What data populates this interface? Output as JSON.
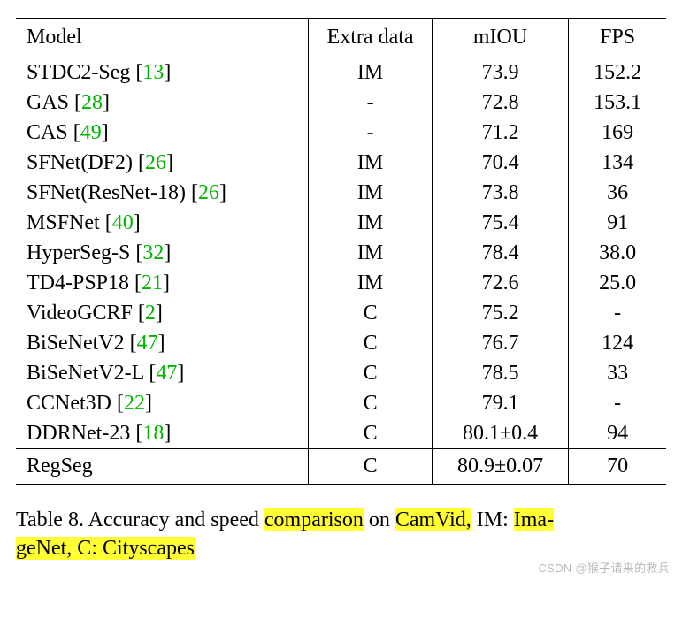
{
  "table": {
    "columns": [
      "Model",
      "Extra data",
      "mIOU",
      "FPS"
    ],
    "column_widths": [
      "45%",
      "19%",
      "21%",
      "15%"
    ],
    "rows": [
      {
        "model": "STDC2-Seg",
        "cite": "13",
        "extra": "IM",
        "miou": "73.9",
        "fps": "152.2"
      },
      {
        "model": "GAS",
        "cite": "28",
        "extra": "-",
        "miou": "72.8",
        "fps": "153.1"
      },
      {
        "model": "CAS",
        "cite": "49",
        "extra": "-",
        "miou": "71.2",
        "fps": "169"
      },
      {
        "model": "SFNet(DF2)",
        "cite": "26",
        "extra": "IM",
        "miou": "70.4",
        "fps": "134"
      },
      {
        "model": "SFNet(ResNet-18)",
        "cite": "26",
        "extra": "IM",
        "miou": "73.8",
        "fps": "36"
      },
      {
        "model": "MSFNet",
        "cite": "40",
        "extra": "IM",
        "miou": "75.4",
        "fps": "91"
      },
      {
        "model": "HyperSeg-S",
        "cite": "32",
        "extra": "IM",
        "miou": "78.4",
        "fps": "38.0"
      },
      {
        "model": "TD4-PSP18",
        "cite": "21",
        "extra": "IM",
        "miou": "72.6",
        "fps": "25.0"
      },
      {
        "model": "VideoGCRF",
        "cite": "2",
        "extra": "C",
        "miou": "75.2",
        "fps": "-"
      },
      {
        "model": "BiSeNetV2",
        "cite": "47",
        "extra": "C",
        "miou": "76.7",
        "fps": "124"
      },
      {
        "model": "BiSeNetV2-L",
        "cite": "47",
        "extra": "C",
        "miou": "78.5",
        "fps": "33"
      },
      {
        "model": "CCNet3D",
        "cite": "22",
        "extra": "C",
        "miou": "79.1",
        "fps": "-"
      },
      {
        "model": "DDRNet-23",
        "cite": "18",
        "extra": "C",
        "miou": "80.1±0.4",
        "fps": "94"
      }
    ],
    "footer_row": {
      "model": "RegSeg",
      "cite": "",
      "extra": "C",
      "miou": "80.9±0.07",
      "fps": "70"
    },
    "border_color": "#000000",
    "cite_color": "#00b400",
    "font_size": 24
  },
  "caption": {
    "label": "Table 8.",
    "text_parts": {
      "p1": "  Accuracy and speed ",
      "hl1": "comparison",
      "p2": " on ",
      "hl2": "CamVid,",
      "p3": " IM: ",
      "hl3": "Ima-",
      "hl4": "geNet, C: Cityscapes"
    },
    "highlight_color": "#ffff33",
    "font_size": 24
  },
  "watermark": "CSDN @猴子请来的救兵"
}
